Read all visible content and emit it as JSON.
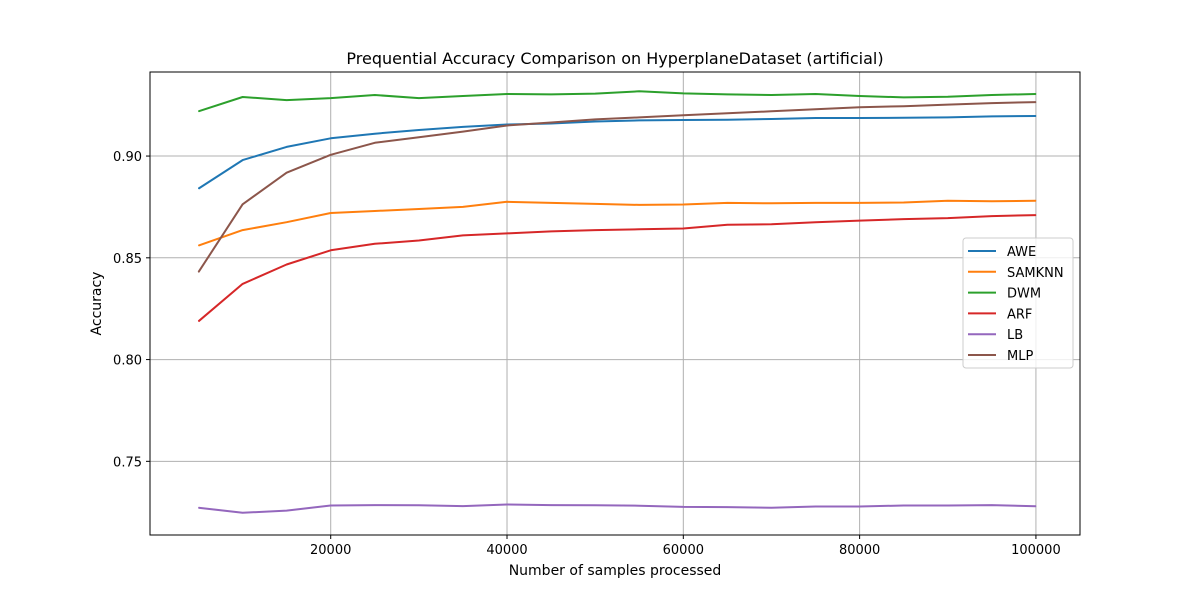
{
  "chart_data": {
    "type": "line",
    "title": "Prequential Accuracy Comparison on HyperplaneDataset (artificial)",
    "xlabel": "Number of samples processed",
    "ylabel": "Accuracy",
    "xlim": [
      -500,
      105000
    ],
    "ylim": [
      0.7138,
      0.9413
    ],
    "x_ticks": [
      20000,
      40000,
      60000,
      80000,
      100000
    ],
    "x_tick_labels": [
      "20000",
      "40000",
      "60000",
      "80000",
      "100000"
    ],
    "y_ticks": [
      0.75,
      0.8,
      0.85,
      0.9
    ],
    "y_tick_labels": [
      "0.75",
      "0.80",
      "0.85",
      "0.90"
    ],
    "grid": true,
    "legend_position": "center-right",
    "x": [
      5000,
      10000,
      15000,
      20000,
      25000,
      30000,
      35000,
      40000,
      45000,
      50000,
      55000,
      60000,
      65000,
      70000,
      75000,
      80000,
      85000,
      90000,
      95000,
      100000
    ],
    "series": [
      {
        "name": "AWE",
        "color": "#1f77b4",
        "values": [
          0.884,
          0.898,
          0.9045,
          0.9087,
          0.911,
          0.9128,
          0.9143,
          0.9155,
          0.916,
          0.917,
          0.9175,
          0.9177,
          0.9178,
          0.9182,
          0.9187,
          0.9187,
          0.9188,
          0.919,
          0.9195,
          0.9197
        ]
      },
      {
        "name": "SAMKNN",
        "color": "#ff7f0e",
        "values": [
          0.856,
          0.8636,
          0.8675,
          0.872,
          0.873,
          0.874,
          0.875,
          0.8775,
          0.877,
          0.8765,
          0.876,
          0.8762,
          0.877,
          0.8768,
          0.877,
          0.877,
          0.8772,
          0.878,
          0.8778,
          0.878
        ]
      },
      {
        "name": "DWM",
        "color": "#2ca02c",
        "values": [
          0.922,
          0.929,
          0.9275,
          0.9285,
          0.93,
          0.9285,
          0.9295,
          0.9305,
          0.9303,
          0.9307,
          0.9318,
          0.9308,
          0.9303,
          0.93,
          0.9305,
          0.9295,
          0.9288,
          0.9291,
          0.93,
          0.9305
        ]
      },
      {
        "name": "ARF",
        "color": "#d62728",
        "values": [
          0.8188,
          0.8372,
          0.8467,
          0.8537,
          0.8569,
          0.8585,
          0.861,
          0.862,
          0.863,
          0.8636,
          0.864,
          0.8644,
          0.8662,
          0.8665,
          0.8675,
          0.8683,
          0.869,
          0.8695,
          0.8705,
          0.871
        ]
      },
      {
        "name": "LB",
        "color": "#9467bd",
        "values": [
          0.7272,
          0.7247,
          0.7258,
          0.7283,
          0.7285,
          0.7284,
          0.728,
          0.7288,
          0.7285,
          0.7284,
          0.7282,
          0.7276,
          0.7275,
          0.7272,
          0.7278,
          0.7278,
          0.7283,
          0.7283,
          0.7285,
          0.7279
        ]
      },
      {
        "name": "MLP",
        "color": "#8c564b",
        "values": [
          0.843,
          0.8763,
          0.8918,
          0.9006,
          0.9065,
          0.9092,
          0.912,
          0.915,
          0.9165,
          0.918,
          0.919,
          0.92,
          0.921,
          0.922,
          0.923,
          0.924,
          0.9245,
          0.9253,
          0.926,
          0.9265
        ]
      }
    ]
  }
}
